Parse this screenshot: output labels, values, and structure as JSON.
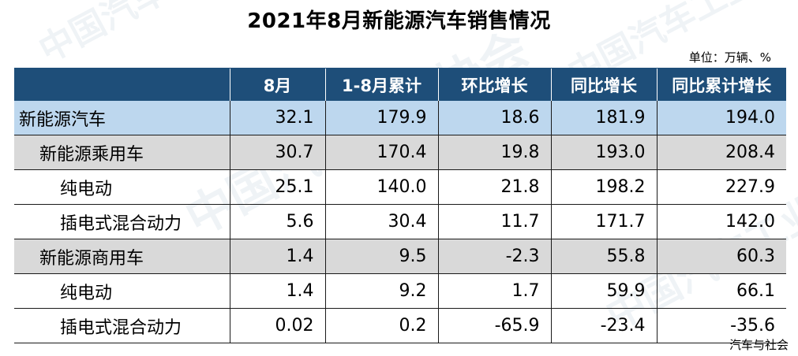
{
  "title": "2021年8月新能源汽车销售情况",
  "unit": "单位：万辆、%",
  "columns": [
    "",
    "8月",
    "1-8月累计",
    "环比增长",
    "同比增长",
    "同比累计增长"
  ],
  "rows": [
    {
      "level": 1,
      "label": "新能源汽车",
      "values": [
        "32.1",
        "179.9",
        "18.6",
        "181.9",
        "194.0"
      ]
    },
    {
      "level": 2,
      "label": "新能源乘用车",
      "values": [
        "30.7",
        "170.4",
        "19.8",
        "193.0",
        "208.4"
      ]
    },
    {
      "level": 3,
      "label": "纯电动",
      "values": [
        "25.1",
        "140.0",
        "21.8",
        "198.2",
        "227.9"
      ]
    },
    {
      "level": 3,
      "label": "插电式混合动力",
      "values": [
        "5.6",
        "30.4",
        "11.7",
        "171.7",
        "142.0"
      ]
    },
    {
      "level": 2,
      "label": "新能源商用车",
      "values": [
        "1.4",
        "9.5",
        "-2.3",
        "55.8",
        "60.3"
      ]
    },
    {
      "level": 3,
      "label": "纯电动",
      "values": [
        "1.4",
        "9.2",
        "1.7",
        "59.9",
        "66.1"
      ]
    },
    {
      "level": 3,
      "label": "插电式混合动力",
      "values": [
        "0.02",
        "0.2",
        "-65.9",
        "-23.4",
        "-35.6"
      ]
    }
  ],
  "watermark": "中国汽车工业协会",
  "source": "汽车与社会",
  "colors": {
    "header_bg": "#1e4e79",
    "level1_bg": "#bdd7ee",
    "level2_bg": "#d9d9d9"
  }
}
